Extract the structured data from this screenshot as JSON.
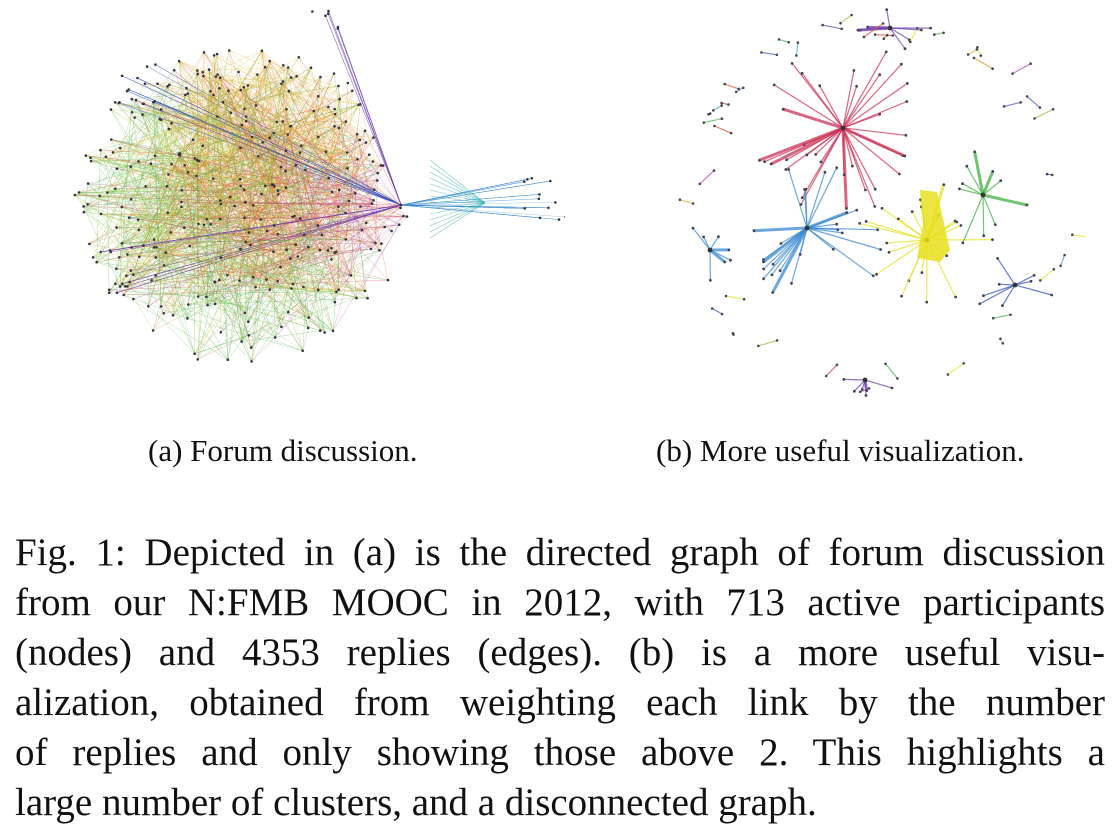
{
  "figure": {
    "panel_a": {
      "subcaption": "(a) Forum discussion."
    },
    "panel_b": {
      "subcaption": "(b) More useful visualization."
    },
    "caption_lines": [
      "Fig. 1: Depicted in (a) is the directed graph of forum discussion",
      "from our N:FMB MOOC in 2012, with 713 active participants",
      "(nodes) and 4353 replies (edges). (b) is a more useful visu-",
      "alization, obtained from weighting each link by the number",
      "of replies and only showing those above 2. This highlights a",
      "large number of clusters, and a disconnected graph."
    ],
    "colors": [
      "#e0b020",
      "#d98a1a",
      "#e05020",
      "#cc3355",
      "#b040b0",
      "#7040b0",
      "#3050c0",
      "#3a8ad0",
      "#30b0b0",
      "#40b040",
      "#90c030",
      "#e6e020"
    ]
  }
}
